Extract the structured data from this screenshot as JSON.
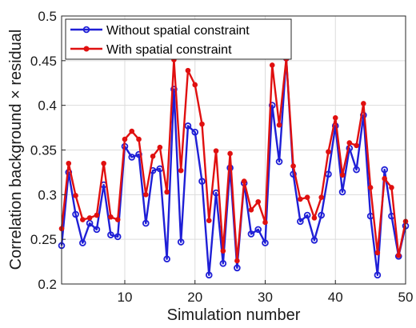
{
  "chart_data": {
    "type": "line",
    "title": "",
    "xlabel": "Simulation number",
    "ylabel": "Correlation background × residual",
    "xlim": [
      1,
      50
    ],
    "ylim": [
      0.2,
      0.5
    ],
    "xticks": [
      10,
      20,
      30,
      40,
      50
    ],
    "yticks": [
      0.2,
      0.25,
      0.3,
      0.35,
      0.4,
      0.45,
      0.5
    ],
    "xtick_labels": [
      "10",
      "20",
      "30",
      "40",
      "50"
    ],
    "ytick_labels": [
      "0.2",
      "0.25",
      "0.3",
      "0.35",
      "0.4",
      "0.45",
      "0.5"
    ],
    "grid": true,
    "legend_position": "top-left",
    "x": [
      1,
      2,
      3,
      4,
      5,
      6,
      7,
      8,
      9,
      10,
      11,
      12,
      13,
      14,
      15,
      16,
      17,
      18,
      19,
      20,
      21,
      22,
      23,
      24,
      25,
      26,
      27,
      28,
      29,
      30,
      31,
      32,
      33,
      34,
      35,
      36,
      37,
      38,
      39,
      40,
      41,
      42,
      43,
      44,
      45,
      46,
      47,
      48,
      49,
      50
    ],
    "series": [
      {
        "name": "Without spatial constraint",
        "color": "#1f1fd6",
        "marker": "circle",
        "values": [
          0.243,
          0.325,
          0.278,
          0.246,
          0.268,
          0.261,
          0.311,
          0.255,
          0.253,
          0.354,
          0.342,
          0.345,
          0.268,
          0.327,
          0.329,
          0.228,
          0.418,
          0.247,
          0.377,
          0.37,
          0.315,
          0.21,
          0.302,
          0.223,
          0.33,
          0.218,
          0.313,
          0.256,
          0.261,
          0.246,
          0.4,
          0.337,
          0.453,
          0.323,
          0.27,
          0.277,
          0.249,
          0.277,
          0.323,
          0.377,
          0.303,
          0.352,
          0.328,
          0.389,
          0.276,
          0.21,
          0.328,
          0.276,
          0.231,
          0.265
        ]
      },
      {
        "name": "With spatial constraint",
        "color": "#e01010",
        "marker": "dot",
        "values": [
          0.262,
          0.335,
          0.299,
          0.272,
          0.274,
          0.277,
          0.335,
          0.275,
          0.272,
          0.362,
          0.371,
          0.362,
          0.3,
          0.343,
          0.353,
          0.303,
          0.451,
          0.327,
          0.439,
          0.423,
          0.379,
          0.271,
          0.349,
          0.237,
          0.346,
          0.226,
          0.315,
          0.283,
          0.292,
          0.269,
          0.445,
          0.378,
          0.452,
          0.332,
          0.295,
          0.297,
          0.274,
          0.297,
          0.348,
          0.386,
          0.322,
          0.358,
          0.355,
          0.402,
          0.308,
          0.235,
          0.318,
          0.308,
          0.232,
          0.27
        ]
      }
    ]
  }
}
